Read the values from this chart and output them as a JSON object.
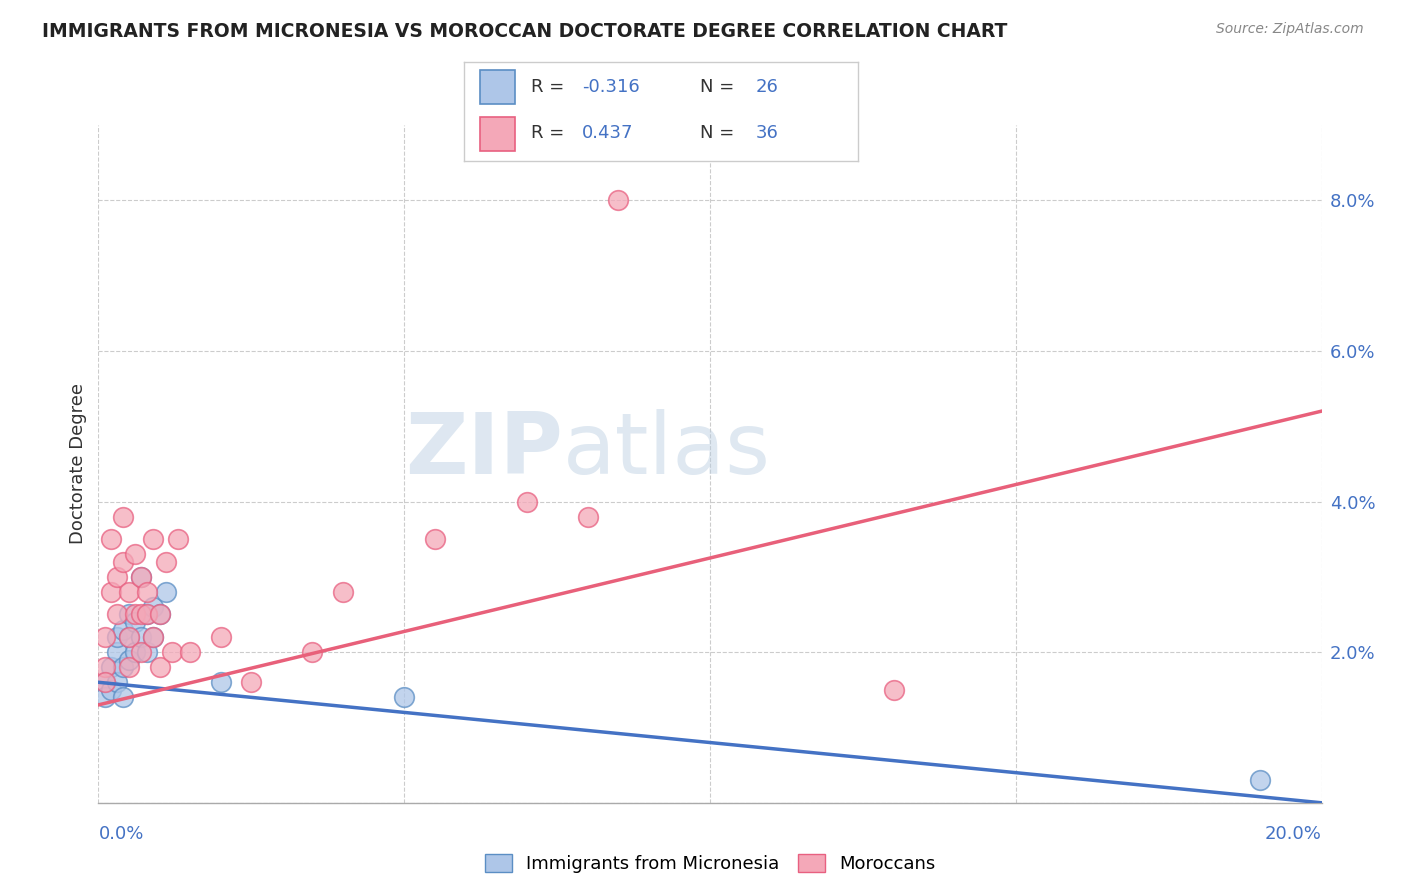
{
  "title": "IMMIGRANTS FROM MICRONESIA VS MOROCCAN DOCTORATE DEGREE CORRELATION CHART",
  "source": "Source: ZipAtlas.com",
  "ylabel": "Doctorate Degree",
  "x_min": 0.0,
  "x_max": 0.2,
  "y_min": 0.0,
  "y_max": 0.09,
  "yticks": [
    0.0,
    0.02,
    0.04,
    0.06,
    0.08
  ],
  "ytick_labels": [
    "",
    "2.0%",
    "4.0%",
    "6.0%",
    "8.0%"
  ],
  "blue_r": "-0.316",
  "blue_n": "26",
  "pink_r": "0.437",
  "pink_n": "36",
  "legend_label_blue": "Immigrants from Micronesia",
  "legend_label_pink": "Moroccans",
  "blue_color": "#aec6e8",
  "pink_color": "#f4a8b8",
  "blue_edge_color": "#5b8ec4",
  "pink_edge_color": "#e86080",
  "blue_line_color": "#4472c4",
  "pink_line_color": "#e8607a",
  "watermark_zip": "ZIP",
  "watermark_atlas": "atlas",
  "blue_scatter_x": [
    0.001,
    0.001,
    0.002,
    0.002,
    0.003,
    0.003,
    0.003,
    0.004,
    0.004,
    0.004,
    0.005,
    0.005,
    0.005,
    0.006,
    0.006,
    0.007,
    0.007,
    0.008,
    0.008,
    0.009,
    0.009,
    0.01,
    0.011,
    0.02,
    0.05,
    0.19
  ],
  "blue_scatter_y": [
    0.016,
    0.014,
    0.018,
    0.015,
    0.02,
    0.022,
    0.016,
    0.023,
    0.018,
    0.014,
    0.025,
    0.022,
    0.019,
    0.024,
    0.02,
    0.03,
    0.022,
    0.025,
    0.02,
    0.026,
    0.022,
    0.025,
    0.028,
    0.016,
    0.014,
    0.003
  ],
  "pink_scatter_x": [
    0.001,
    0.001,
    0.001,
    0.002,
    0.002,
    0.003,
    0.003,
    0.004,
    0.004,
    0.005,
    0.005,
    0.005,
    0.006,
    0.006,
    0.007,
    0.007,
    0.007,
    0.008,
    0.008,
    0.009,
    0.009,
    0.01,
    0.01,
    0.011,
    0.012,
    0.013,
    0.015,
    0.02,
    0.025,
    0.035,
    0.04,
    0.055,
    0.07,
    0.08,
    0.13,
    0.085
  ],
  "pink_scatter_y": [
    0.022,
    0.018,
    0.016,
    0.035,
    0.028,
    0.03,
    0.025,
    0.038,
    0.032,
    0.028,
    0.022,
    0.018,
    0.033,
    0.025,
    0.03,
    0.025,
    0.02,
    0.025,
    0.028,
    0.035,
    0.022,
    0.025,
    0.018,
    0.032,
    0.02,
    0.035,
    0.02,
    0.022,
    0.016,
    0.02,
    0.028,
    0.035,
    0.04,
    0.038,
    0.015,
    0.08
  ],
  "blue_trendline_x": [
    0.0,
    0.2
  ],
  "blue_trendline_y": [
    0.016,
    0.0
  ],
  "pink_trendline_x": [
    0.0,
    0.2
  ],
  "pink_trendline_y": [
    0.013,
    0.052
  ]
}
